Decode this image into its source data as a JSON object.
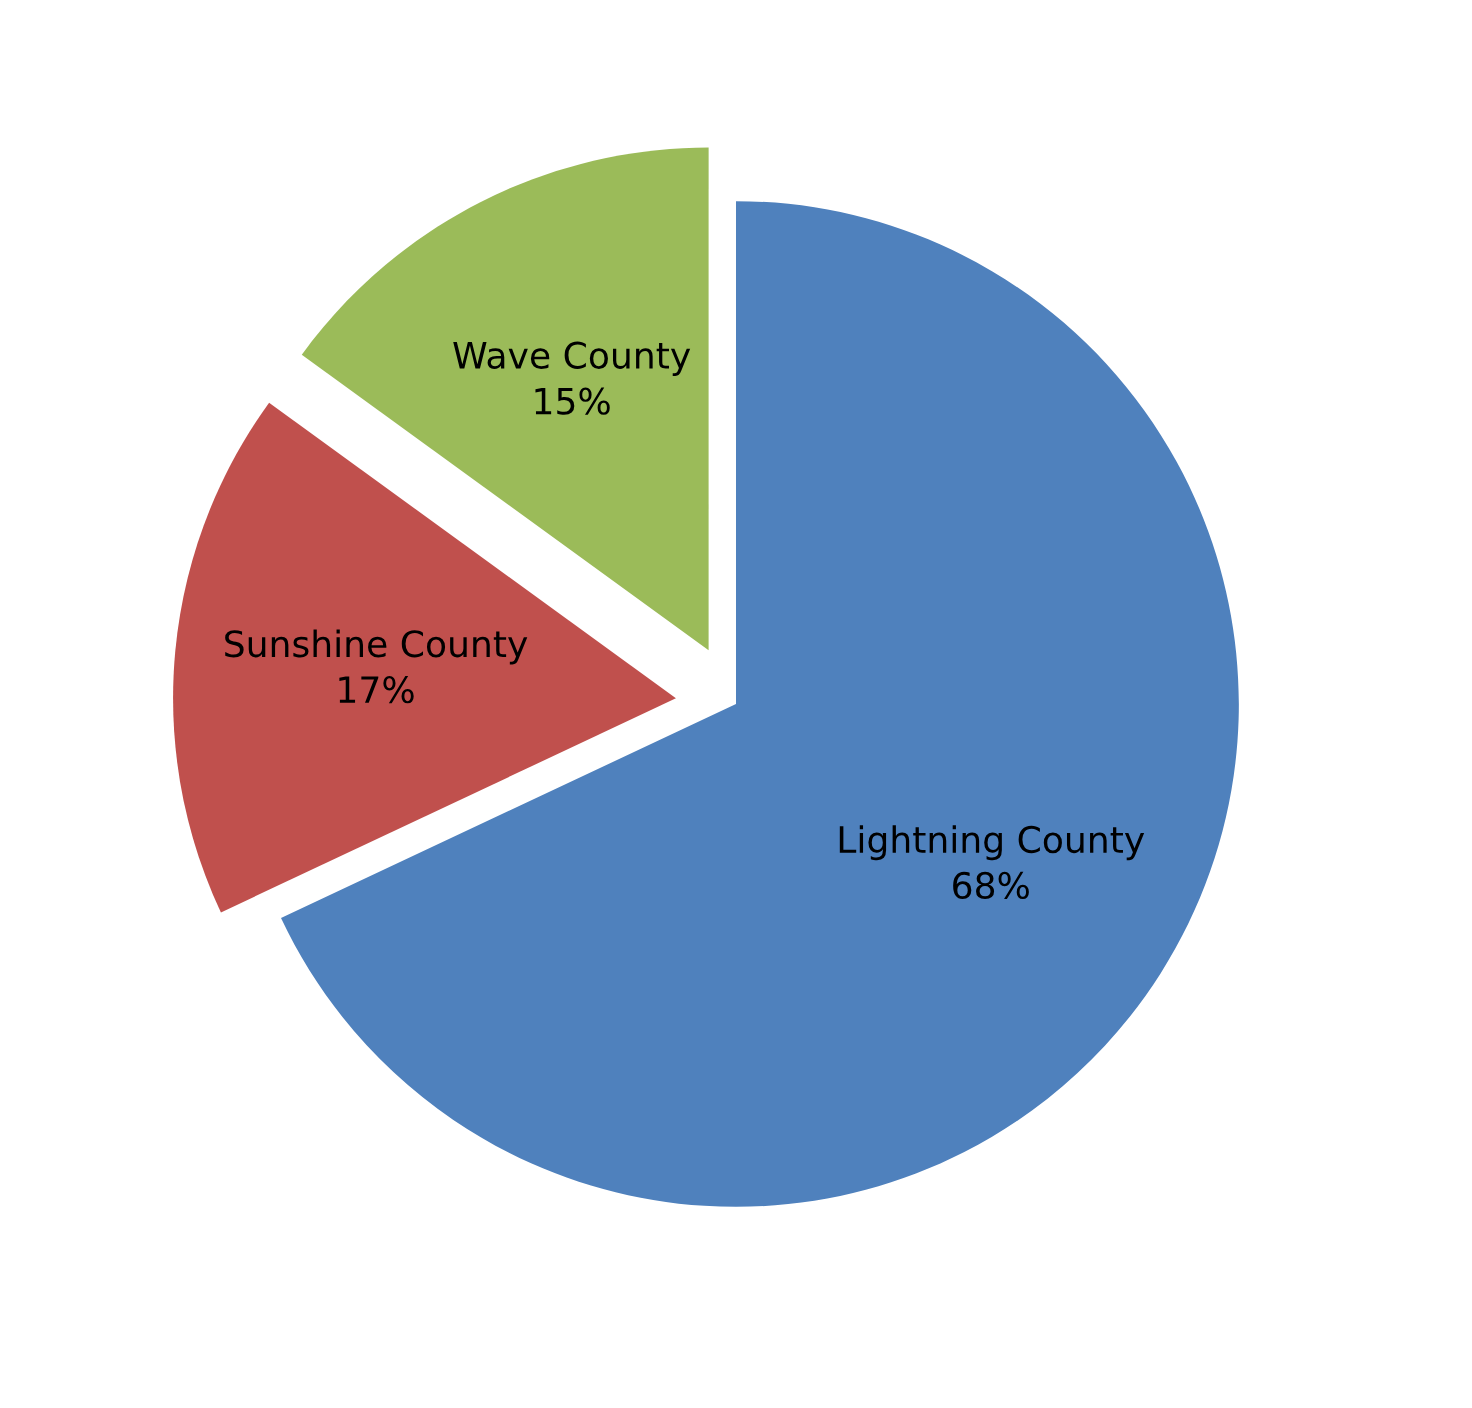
{
  "chart_data": {
    "type": "pie",
    "categories": [
      "Lightning County",
      "Sunshine County",
      "Wave County"
    ],
    "values": [
      68,
      17,
      15
    ],
    "colors": [
      "#4f81bd",
      "#c0504d",
      "#9bbb59"
    ],
    "value_labels": [
      "68%",
      "17%",
      "15%"
    ]
  }
}
